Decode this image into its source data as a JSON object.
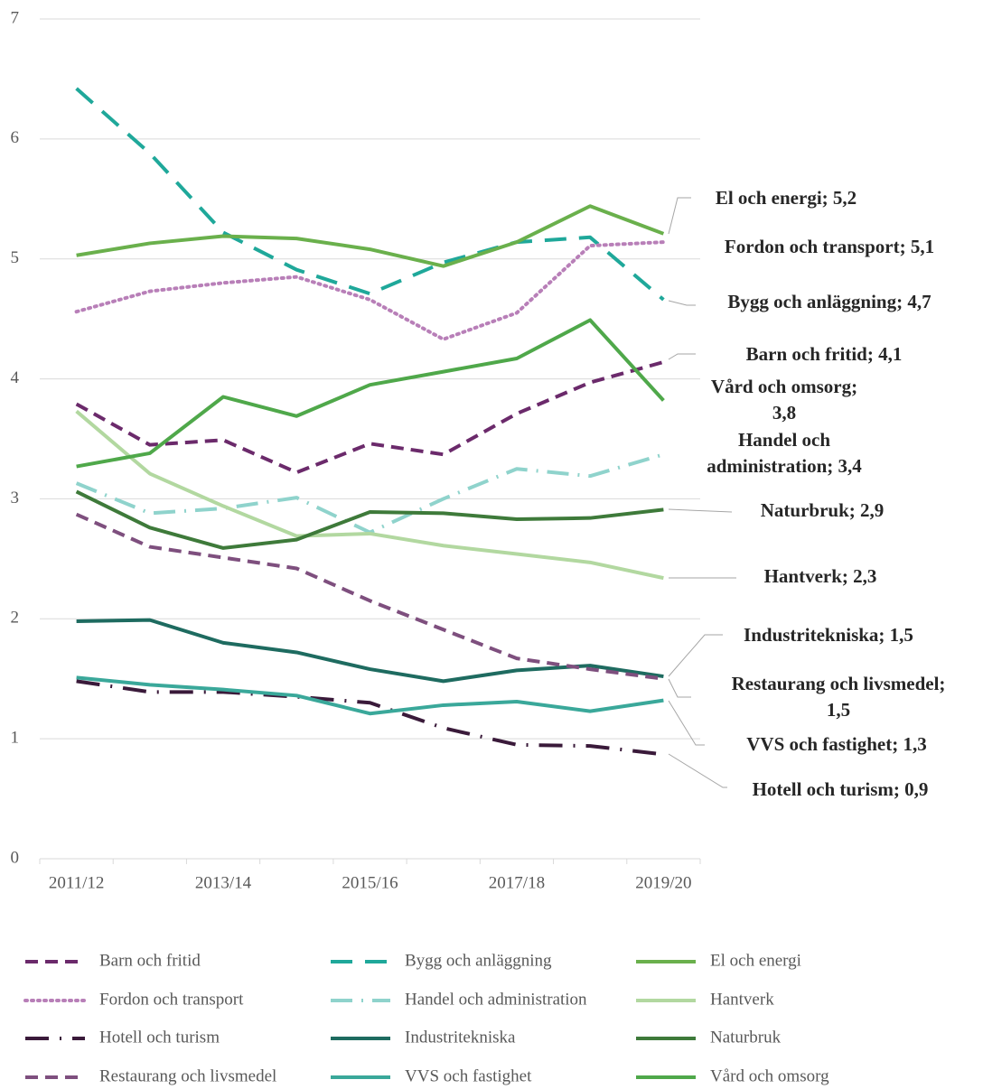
{
  "chart_data": {
    "type": "line",
    "categories": [
      "2011/12",
      null,
      "2013/14",
      null,
      "2015/16",
      null,
      "2017/18",
      null,
      "2019/20"
    ],
    "ylim": [
      0,
      7
    ],
    "yticks": [
      0,
      1,
      2,
      3,
      4,
      5,
      6,
      7
    ],
    "grid": true,
    "series": [
      {
        "name": "Barn och fritid",
        "color": "#6b2a6b",
        "dash": "14,8",
        "values": [
          3.79,
          3.45,
          3.49,
          3.22,
          3.46,
          3.37,
          3.71,
          3.97,
          4.14
        ],
        "label_lines": [
          "Barn och fritid; 4,1"
        ]
      },
      {
        "name": "Bygg och anläggning",
        "color": "#1fa89a",
        "dash": "24,14",
        "values": [
          6.42,
          5.88,
          5.22,
          4.91,
          4.71,
          4.97,
          5.14,
          5.18,
          4.66
        ],
        "label_lines": [
          "Bygg och anläggning; 4,7"
        ]
      },
      {
        "name": "El och energi",
        "color": "#6ab04c",
        "dash": null,
        "values": [
          5.03,
          5.13,
          5.19,
          5.17,
          5.08,
          4.94,
          5.14,
          5.44,
          5.21
        ],
        "label_lines": [
          "El och energi; 5,2"
        ]
      },
      {
        "name": "Fordon och transport",
        "color": "#b87fb8",
        "dash": "2,5",
        "values": [
          4.56,
          4.73,
          4.8,
          4.85,
          4.66,
          4.33,
          4.55,
          5.11,
          5.14
        ],
        "label_lines": [
          "Fordon och transport; 5,1"
        ]
      },
      {
        "name": "Handel och administration",
        "color": "#8fd3cc",
        "dash": "24,10,2,10",
        "values": [
          3.13,
          2.88,
          2.92,
          3.01,
          2.72,
          3.0,
          3.25,
          3.19,
          3.37
        ],
        "label_lines": [
          "Handel och",
          "administration; 3,4"
        ]
      },
      {
        "name": "Hantverk",
        "color": "#b2d8a0",
        "dash": null,
        "values": [
          3.73,
          3.21,
          2.94,
          2.69,
          2.71,
          2.61,
          2.54,
          2.47,
          2.34
        ],
        "label_lines": [
          "Hantverk; 2,3"
        ]
      },
      {
        "name": "Hotell och turism",
        "color": "#3a1a3a",
        "dash": "26,12,2,12",
        "values": [
          1.48,
          1.39,
          1.39,
          1.35,
          1.3,
          1.09,
          0.95,
          0.94,
          0.87
        ],
        "label_lines": [
          "Hotell och turism; 0,9"
        ]
      },
      {
        "name": "Industritekniska",
        "color": "#1e6b60",
        "dash": null,
        "values": [
          1.98,
          1.99,
          1.8,
          1.72,
          1.58,
          1.48,
          1.57,
          1.61,
          1.52
        ],
        "label_lines": [
          "Industritekniska; 1,5"
        ]
      },
      {
        "name": "Naturbruk",
        "color": "#3e7a3a",
        "dash": null,
        "values": [
          3.06,
          2.76,
          2.59,
          2.66,
          2.89,
          2.88,
          2.83,
          2.84,
          2.91
        ],
        "label_lines": [
          "Naturbruk; 2,9"
        ]
      },
      {
        "name": "Restaurang och livsmedel",
        "color": "#7e4f7e",
        "dash": "14,8",
        "values": [
          2.87,
          2.6,
          2.51,
          2.42,
          2.15,
          1.91,
          1.67,
          1.58,
          1.5
        ],
        "label_lines": [
          "Restaurang och livsmedel;",
          "1,5"
        ]
      },
      {
        "name": "VVS och fastighet",
        "color": "#3aa89a",
        "dash": null,
        "values": [
          1.51,
          1.45,
          1.41,
          1.36,
          1.21,
          1.28,
          1.31,
          1.23,
          1.32
        ],
        "label_lines": [
          "VVS och fastighet; 1,3"
        ]
      },
      {
        "name": "Vård och omsorg",
        "color": "#4fa84a",
        "dash": null,
        "values": [
          3.27,
          3.38,
          3.85,
          3.69,
          3.95,
          4.06,
          4.17,
          4.49,
          3.82
        ],
        "label_lines": [
          "Vård och omsorg;",
          "3,8"
        ]
      }
    ]
  }
}
